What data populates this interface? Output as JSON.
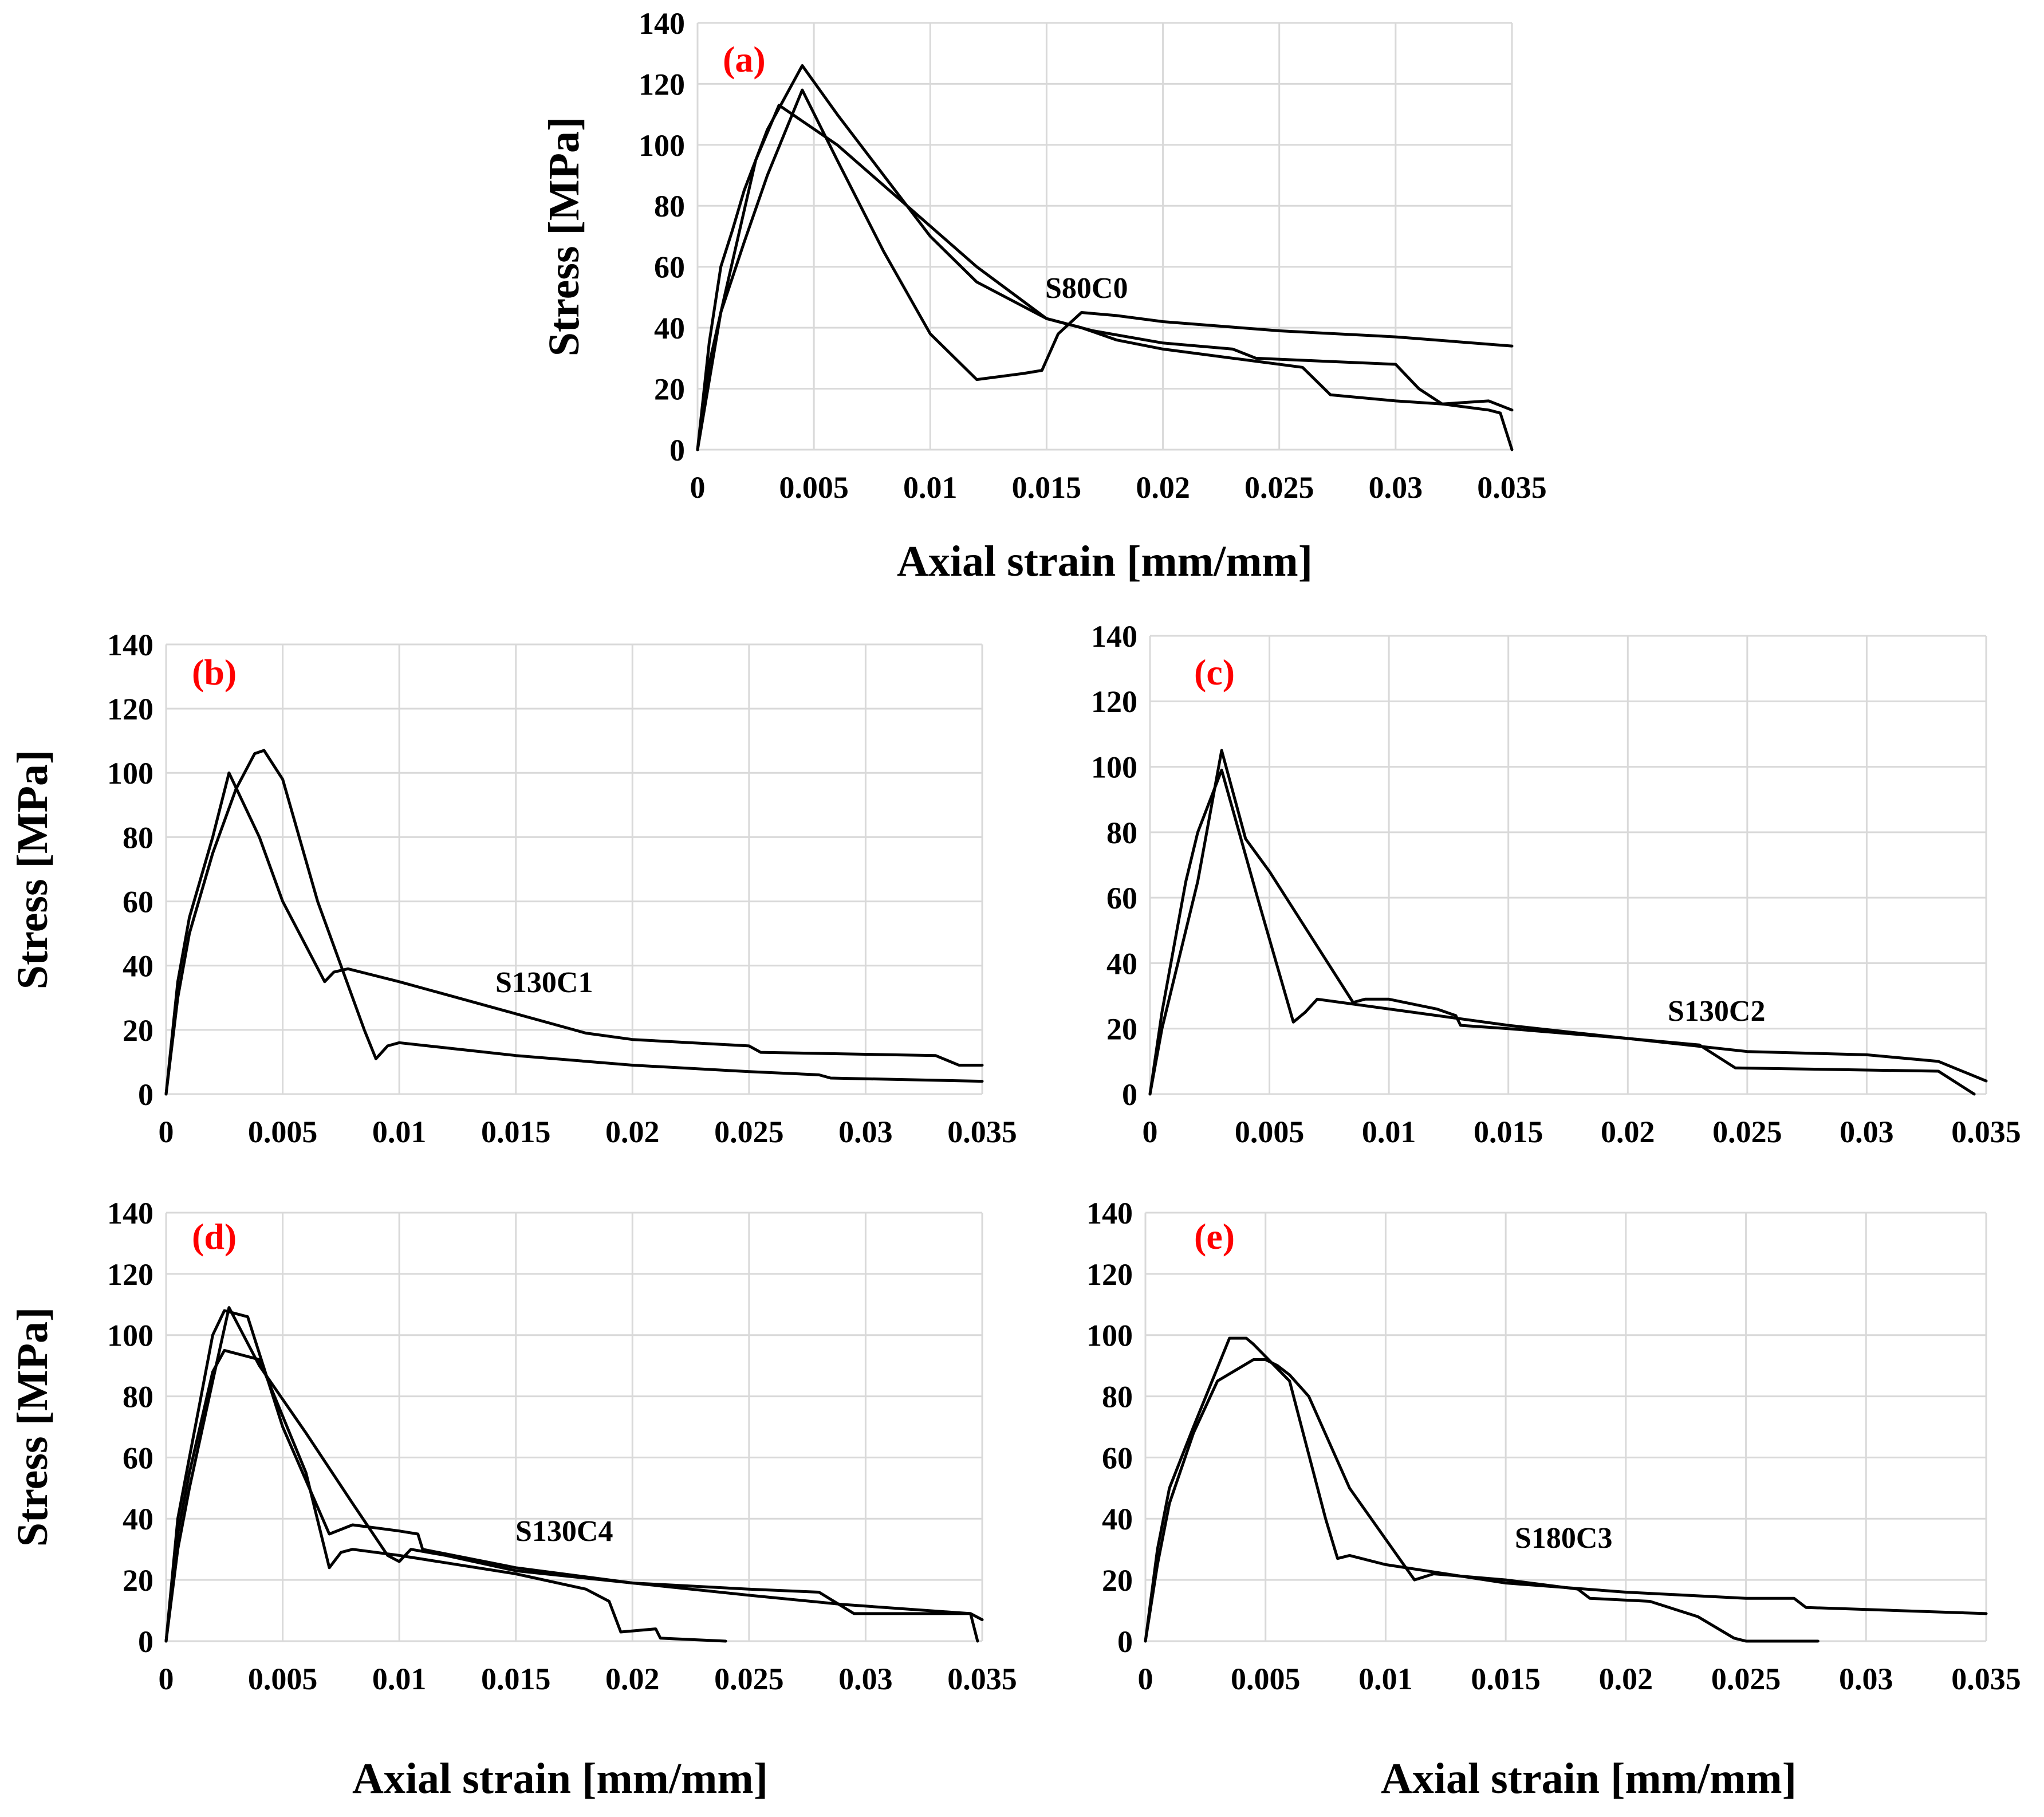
{
  "figure": {
    "label_color": "#ff0000",
    "line_color": "#000000",
    "grid_color": "#d9d9d9"
  },
  "chart_data": [
    {
      "id": "a",
      "type": "line",
      "panel_label": "(a)",
      "specimen": "S80C0",
      "xlabel": "Axial strain [mm/mm]",
      "ylabel": "Stress [MPa]",
      "xlim": [
        0,
        0.035
      ],
      "ylim": [
        0,
        140
      ],
      "xticks": [
        0,
        0.005,
        0.01,
        0.015,
        0.02,
        0.025,
        0.03,
        0.035
      ],
      "xtick_labels": [
        "0",
        "0.005",
        "0.01",
        "0.015",
        "0.02",
        "0.025",
        "0.03",
        "0.035"
      ],
      "yticks": [
        0,
        20,
        40,
        60,
        80,
        100,
        120,
        140
      ],
      "ytick_labels": [
        "0",
        "20",
        "40",
        "60",
        "80",
        "100",
        "120",
        "140"
      ],
      "grid": true,
      "series": [
        {
          "name": "curve-1",
          "x": [
            0,
            0.0005,
            0.001,
            0.0015,
            0.002,
            0.003,
            0.0045,
            0.006,
            0.008,
            0.01,
            0.012,
            0.015,
            0.017,
            0.02,
            0.023,
            0.024,
            0.027,
            0.03,
            0.031,
            0.032,
            0.034,
            0.035
          ],
          "y": [
            0,
            35,
            60,
            72,
            85,
            105,
            126,
            110,
            90,
            70,
            55,
            43,
            39,
            35,
            33,
            30,
            29,
            28,
            20,
            15,
            16,
            13
          ]
        },
        {
          "name": "curve-2",
          "x": [
            0,
            0.0005,
            0.001,
            0.002,
            0.003,
            0.0045,
            0.006,
            0.008,
            0.01,
            0.012,
            0.014,
            0.0148,
            0.0155,
            0.0165,
            0.018,
            0.02,
            0.025,
            0.03,
            0.035
          ],
          "y": [
            0,
            28,
            45,
            68,
            90,
            118,
            95,
            65,
            38,
            23,
            25,
            26,
            38,
            45,
            44,
            42,
            39,
            37,
            34
          ]
        },
        {
          "name": "curve-3",
          "x": [
            0,
            0.001,
            0.0025,
            0.0035,
            0.006,
            0.009,
            0.012,
            0.015,
            0.0165,
            0.018,
            0.02,
            0.026,
            0.0272,
            0.03,
            0.032,
            0.034,
            0.0345,
            0.035
          ],
          "y": [
            0,
            45,
            95,
            113,
            100,
            80,
            60,
            43,
            40,
            36,
            33,
            27,
            18,
            16,
            15,
            13,
            12,
            0
          ]
        }
      ]
    },
    {
      "id": "b",
      "type": "line",
      "panel_label": "(b)",
      "specimen": "S130C1",
      "xlabel": "",
      "ylabel": "Stress [MPa]",
      "xlim": [
        0,
        0.035
      ],
      "ylim": [
        0,
        140
      ],
      "xticks": [
        0,
        0.005,
        0.01,
        0.015,
        0.02,
        0.025,
        0.03,
        0.035
      ],
      "xtick_labels": [
        "0",
        "0.005",
        "0.01",
        "0.015",
        "0.02",
        "0.025",
        "0.03",
        "0.035"
      ],
      "yticks": [
        0,
        20,
        40,
        60,
        80,
        100,
        120,
        140
      ],
      "ytick_labels": [
        "0",
        "20",
        "40",
        "60",
        "80",
        "100",
        "120",
        "140"
      ],
      "grid": true,
      "series": [
        {
          "name": "curve-1",
          "x": [
            0,
            0.0005,
            0.001,
            0.002,
            0.003,
            0.0038,
            0.0042,
            0.005,
            0.0065,
            0.0085,
            0.009,
            0.0095,
            0.01,
            0.015,
            0.02,
            0.025,
            0.028,
            0.0285,
            0.035
          ],
          "y": [
            0,
            30,
            50,
            75,
            95,
            106,
            107,
            98,
            60,
            20,
            11,
            15,
            16,
            12,
            9,
            7,
            6,
            5,
            4
          ]
        },
        {
          "name": "curve-2",
          "x": [
            0,
            0.0005,
            0.001,
            0.002,
            0.0027,
            0.004,
            0.005,
            0.0068,
            0.0072,
            0.0078,
            0.01,
            0.012,
            0.015,
            0.0175,
            0.018,
            0.02,
            0.025,
            0.0255,
            0.033,
            0.034,
            0.035
          ],
          "y": [
            0,
            35,
            55,
            80,
            100,
            80,
            60,
            35,
            38,
            39,
            35,
            31,
            25,
            20,
            19,
            17,
            15,
            13,
            12,
            9,
            9
          ]
        }
      ]
    },
    {
      "id": "c",
      "type": "line",
      "panel_label": "(c)",
      "specimen": "S130C2",
      "xlabel": "",
      "ylabel": "",
      "xlim": [
        0,
        0.035
      ],
      "ylim": [
        0,
        140
      ],
      "xticks": [
        0,
        0.005,
        0.01,
        0.015,
        0.02,
        0.025,
        0.03,
        0.035
      ],
      "xtick_labels": [
        "0",
        "0.005",
        "0.01",
        "0.015",
        "0.02",
        "0.025",
        "0.03",
        "0.035"
      ],
      "yticks": [
        0,
        20,
        40,
        60,
        80,
        100,
        120,
        140
      ],
      "ytick_labels": [
        "0",
        "20",
        "40",
        "60",
        "80",
        "100",
        "120",
        "140"
      ],
      "grid": true,
      "series": [
        {
          "name": "curve-1",
          "x": [
            0,
            0.0005,
            0.001,
            0.0015,
            0.002,
            0.003,
            0.0045,
            0.006,
            0.0065,
            0.007,
            0.008,
            0.01,
            0.015,
            0.02,
            0.025,
            0.03,
            0.033,
            0.035
          ],
          "y": [
            0,
            25,
            45,
            65,
            80,
            99,
            60,
            22,
            25,
            29,
            28,
            26,
            21,
            17,
            13,
            12,
            10,
            4
          ]
        },
        {
          "name": "curve-2",
          "x": [
            0,
            0.0005,
            0.001,
            0.002,
            0.003,
            0.004,
            0.005,
            0.0085,
            0.009,
            0.01,
            0.012,
            0.0128,
            0.013,
            0.015,
            0.02,
            0.023,
            0.0245,
            0.033,
            0.0345
          ],
          "y": [
            0,
            20,
            35,
            65,
            105,
            78,
            68,
            28,
            29,
            29,
            26,
            24,
            21,
            20,
            17,
            15,
            8,
            7,
            0
          ]
        }
      ]
    },
    {
      "id": "d",
      "type": "line",
      "panel_label": "(d)",
      "specimen": "S130C4",
      "xlabel": "Axial strain [mm/mm]",
      "ylabel": "Stress [MPa]",
      "xlim": [
        0,
        0.035
      ],
      "ylim": [
        0,
        140
      ],
      "xticks": [
        0,
        0.005,
        0.01,
        0.015,
        0.02,
        0.025,
        0.03,
        0.035
      ],
      "xtick_labels": [
        "0",
        "0.005",
        "0.01",
        "0.015",
        "0.02",
        "0.025",
        "0.03",
        "0.035"
      ],
      "yticks": [
        0,
        20,
        40,
        60,
        80,
        100,
        120,
        140
      ],
      "ytick_labels": [
        "0",
        "20",
        "40",
        "60",
        "80",
        "100",
        "120",
        "140"
      ],
      "grid": true,
      "series": [
        {
          "name": "curve-1",
          "x": [
            0,
            0.0005,
            0.001,
            0.0015,
            0.002,
            0.0025,
            0.0035,
            0.005,
            0.007,
            0.008,
            0.01,
            0.0108,
            0.011,
            0.015,
            0.02,
            0.025,
            0.028,
            0.0295,
            0.0345,
            0.035
          ],
          "y": [
            0,
            40,
            60,
            80,
            100,
            108,
            106,
            70,
            35,
            38,
            36,
            35,
            30,
            24,
            19,
            17,
            16,
            9,
            9,
            7
          ]
        },
        {
          "name": "curve-2",
          "x": [
            0,
            0.0005,
            0.001,
            0.002,
            0.0025,
            0.004,
            0.006,
            0.007,
            0.0075,
            0.008,
            0.01,
            0.015,
            0.018,
            0.019,
            0.0195,
            0.021,
            0.0212,
            0.024
          ],
          "y": [
            0,
            35,
            55,
            88,
            95,
            92,
            55,
            24,
            29,
            30,
            28,
            22,
            17,
            13,
            3,
            4,
            1,
            0
          ]
        },
        {
          "name": "curve-3",
          "x": [
            0,
            0.0005,
            0.001,
            0.002,
            0.0027,
            0.004,
            0.006,
            0.008,
            0.0095,
            0.01,
            0.0105,
            0.012,
            0.015,
            0.02,
            0.025,
            0.029,
            0.0345,
            0.0348
          ],
          "y": [
            0,
            30,
            50,
            85,
            109,
            90,
            68,
            45,
            28,
            26,
            30,
            28,
            23,
            19,
            15,
            12,
            9,
            0
          ]
        }
      ]
    },
    {
      "id": "e",
      "type": "line",
      "panel_label": "(e)",
      "specimen": "S180C3",
      "xlabel": "Axial strain [mm/mm]",
      "ylabel": "",
      "xlim": [
        0,
        0.035
      ],
      "ylim": [
        0,
        140
      ],
      "xticks": [
        0,
        0.005,
        0.01,
        0.015,
        0.02,
        0.025,
        0.03,
        0.035
      ],
      "xtick_labels": [
        "0",
        "0.005",
        "0.01",
        "0.015",
        "0.02",
        "0.025",
        "0.03",
        "0.035"
      ],
      "yticks": [
        0,
        20,
        40,
        60,
        80,
        100,
        120,
        140
      ],
      "ytick_labels": [
        "0",
        "20",
        "40",
        "60",
        "80",
        "100",
        "120",
        "140"
      ],
      "grid": true,
      "series": [
        {
          "name": "curve-1",
          "x": [
            0,
            0.0005,
            0.001,
            0.0015,
            0.002,
            0.0035,
            0.0042,
            0.0045,
            0.006,
            0.0065,
            0.0075,
            0.008,
            0.0085,
            0.01,
            0.015,
            0.02,
            0.025,
            0.027,
            0.0275,
            0.035
          ],
          "y": [
            0,
            30,
            50,
            60,
            70,
            99,
            99,
            97,
            85,
            70,
            40,
            27,
            28,
            25,
            19,
            16,
            14,
            14,
            11,
            9
          ]
        },
        {
          "name": "curve-2",
          "x": [
            0,
            0.0005,
            0.001,
            0.002,
            0.003,
            0.0045,
            0.005,
            0.0055,
            0.006,
            0.0068,
            0.0085,
            0.0112,
            0.012,
            0.015,
            0.018,
            0.0185,
            0.021,
            0.023,
            0.0245,
            0.025,
            0.028
          ],
          "y": [
            0,
            25,
            45,
            68,
            85,
            92,
            92,
            90,
            87,
            80,
            50,
            20,
            22,
            20,
            17,
            14,
            13,
            8,
            1,
            0,
            0
          ]
        }
      ]
    }
  ]
}
